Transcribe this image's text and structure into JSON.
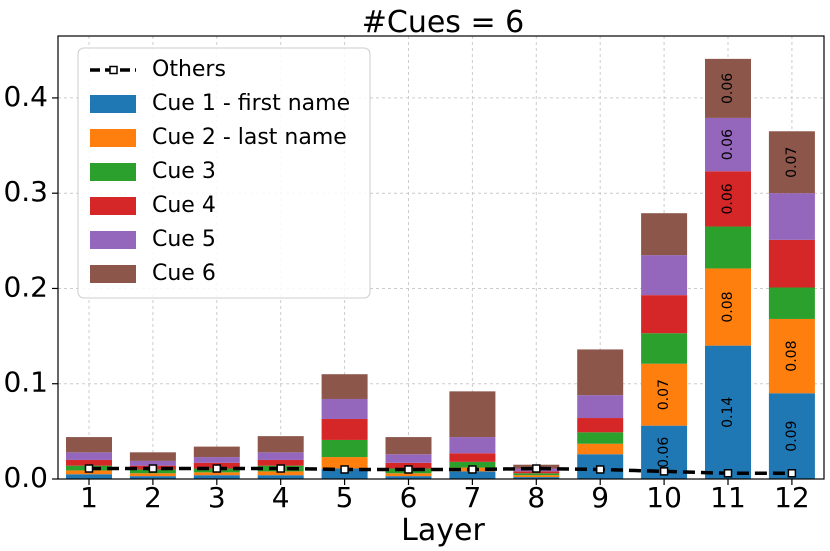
{
  "chart_data": {
    "type": "bar",
    "stacked": true,
    "title": "#Cues = 6",
    "xlabel": "Layer",
    "ylabel": "",
    "ylim": [
      0,
      0.465
    ],
    "yticks": [
      "0.0",
      "0.1",
      "0.2",
      "0.3",
      "0.4"
    ],
    "ytick_values": [
      0,
      0.1,
      0.2,
      0.3,
      0.4
    ],
    "grid": true,
    "legend_position": "upper-left",
    "categories": [
      "1",
      "2",
      "3",
      "4",
      "5",
      "6",
      "7",
      "8",
      "9",
      "10",
      "11",
      "12"
    ],
    "series": [
      {
        "name": "Cue 1 - first name",
        "color": "#1f77b4",
        "values": [
          0.005,
          0.003,
          0.004,
          0.004,
          0.011,
          0.003,
          0.008,
          0.002,
          0.026,
          0.056,
          0.14,
          0.09
        ]
      },
      {
        "name": "Cue 2 - last name",
        "color": "#ff7f0e",
        "values": [
          0.004,
          0.003,
          0.003,
          0.004,
          0.012,
          0.003,
          0.004,
          0.002,
          0.011,
          0.065,
          0.081,
          0.078
        ]
      },
      {
        "name": "Cue 3",
        "color": "#2ca02c",
        "values": [
          0.005,
          0.004,
          0.004,
          0.006,
          0.018,
          0.005,
          0.006,
          0.002,
          0.012,
          0.032,
          0.044,
          0.033
        ]
      },
      {
        "name": "Cue 4",
        "color": "#d62728",
        "values": [
          0.006,
          0.004,
          0.006,
          0.006,
          0.022,
          0.006,
          0.009,
          0.002,
          0.015,
          0.04,
          0.058,
          0.05
        ]
      },
      {
        "name": "Cue 5",
        "color": "#9467bd",
        "values": [
          0.008,
          0.005,
          0.006,
          0.008,
          0.021,
          0.009,
          0.017,
          0.003,
          0.024,
          0.042,
          0.056,
          0.049
        ]
      },
      {
        "name": "Cue 6",
        "color": "#8c564b",
        "values": [
          0.016,
          0.009,
          0.011,
          0.017,
          0.026,
          0.018,
          0.048,
          0.004,
          0.048,
          0.044,
          0.062,
          0.065
        ]
      }
    ],
    "others": {
      "name": "Others",
      "color": "#000000",
      "values": [
        0.011,
        0.011,
        0.011,
        0.011,
        0.01,
        0.01,
        0.01,
        0.011,
        0.01,
        0.008,
        0.006,
        0.006
      ]
    },
    "data_labels": [
      {
        "category_index": 9,
        "series_index": 0,
        "text": "0.06"
      },
      {
        "category_index": 9,
        "series_index": 1,
        "text": "0.07"
      },
      {
        "category_index": 10,
        "series_index": 0,
        "text": "0.14"
      },
      {
        "category_index": 10,
        "series_index": 1,
        "text": "0.08"
      },
      {
        "category_index": 10,
        "series_index": 3,
        "text": "0.06"
      },
      {
        "category_index": 10,
        "series_index": 4,
        "text": "0.06"
      },
      {
        "category_index": 10,
        "series_index": 5,
        "text": "0.06"
      },
      {
        "category_index": 11,
        "series_index": 0,
        "text": "0.09"
      },
      {
        "category_index": 11,
        "series_index": 1,
        "text": "0.08"
      },
      {
        "category_index": 11,
        "series_index": 5,
        "text": "0.07"
      }
    ]
  }
}
